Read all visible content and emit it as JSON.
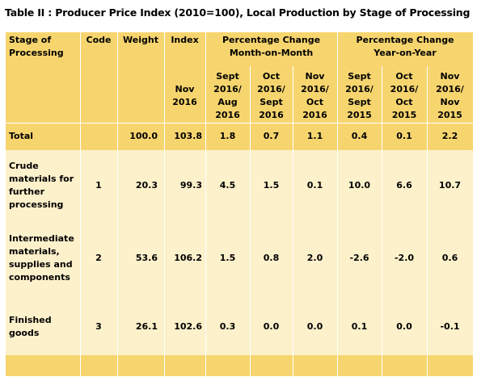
{
  "title": "Table II : Producer Price  Index (2010=100),  Local Production by Stage of Processing",
  "headers": {
    "stage_line1": "Stage of",
    "stage_line2": "Processing",
    "code": "Code",
    "weight": "Weight",
    "index": "Index",
    "mom_line1": "Percentage Change",
    "mom_line2": "Month-on-Month",
    "yoy_line1": "Percentage Change",
    "yoy_line2": "Year-on-Year",
    "index_sub": [
      "Nov",
      "2016"
    ],
    "mom_sub": [
      [
        "Sept",
        "2016/",
        "Aug",
        "2016"
      ],
      [
        "Oct",
        "2016/",
        "Sept",
        "2016"
      ],
      [
        "Nov",
        "2016/",
        "Oct",
        "2016"
      ]
    ],
    "yoy_sub": [
      [
        "Sept",
        "2016/",
        "Sept",
        "2015"
      ],
      [
        "Oct",
        "2016/",
        "Oct",
        "2015"
      ],
      [
        "Nov",
        "2016/",
        "Nov",
        "2015"
      ]
    ]
  },
  "rows": [
    {
      "stage": [
        "Total"
      ],
      "code": "",
      "weight": "100.0",
      "index": "103.8",
      "mom": [
        "1.8",
        "0.7",
        "1.1"
      ],
      "yoy": [
        "0.4",
        "0.1",
        "2.2"
      ]
    },
    {
      "stage": [
        "Crude",
        "materials for",
        "further",
        "processing"
      ],
      "code": "1",
      "weight": "20.3",
      "index": "99.3",
      "mom": [
        "4.5",
        "1.5",
        "0.1"
      ],
      "yoy": [
        "10.0",
        "6.6",
        "10.7"
      ]
    },
    {
      "stage": [
        "Intermediate",
        "materials,",
        "supplies and",
        "components"
      ],
      "code": "2",
      "weight": "53.6",
      "index": "106.2",
      "mom": [
        "1.5",
        "0.8",
        "2.0"
      ],
      "yoy": [
        "-2.6",
        "-2.0",
        "0.6"
      ]
    },
    {
      "stage": [
        "Finished",
        "goods"
      ],
      "code": "3",
      "weight": "26.1",
      "index": "102.6",
      "mom": [
        "0.3",
        "0.0",
        "0.0"
      ],
      "yoy": [
        "0.1",
        "0.0",
        "-0.1"
      ]
    }
  ]
}
